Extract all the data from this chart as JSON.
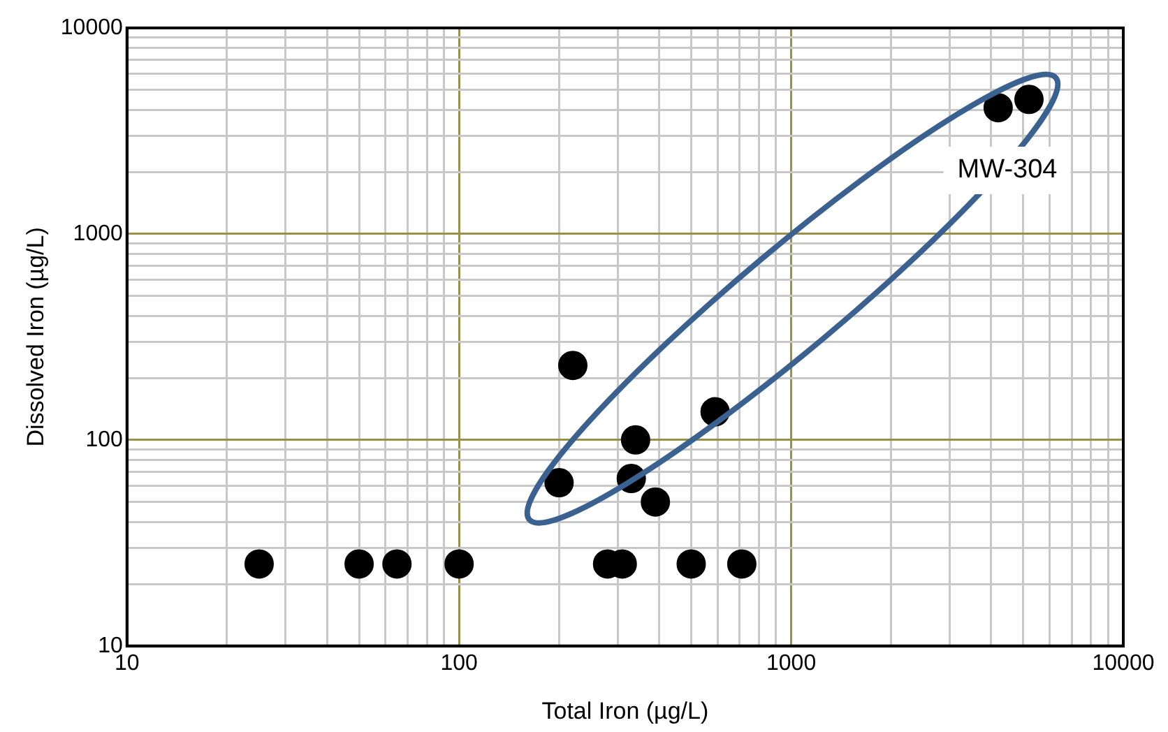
{
  "chart_data": {
    "type": "scatter",
    "xlabel": "Total Iron (µg/L)",
    "ylabel": "Dissolved Iron (µg/L)",
    "log": "xy",
    "grid": true,
    "legend": false,
    "marker": "circle",
    "xlim": [
      10,
      10000
    ],
    "ylim": [
      10,
      10000
    ],
    "xticks": [
      10,
      {
        "value": 20,
        "label": null
      },
      {
        "value": 30,
        "label": null
      },
      {
        "value": 40,
        "label": null
      },
      {
        "value": 50,
        "label": null
      },
      {
        "value": 60,
        "label": null
      },
      {
        "value": 70,
        "label": null
      },
      {
        "value": 80,
        "label": null
      },
      {
        "value": 90,
        "label": null
      },
      100,
      {
        "value": 200,
        "label": null
      },
      {
        "value": 300,
        "label": null
      },
      {
        "value": 400,
        "label": null
      },
      {
        "value": 500,
        "label": null
      },
      {
        "value": 600,
        "label": null
      },
      {
        "value": 700,
        "label": null
      },
      {
        "value": 800,
        "label": null
      },
      {
        "value": 900,
        "label": null
      },
      1000,
      {
        "value": 2000,
        "label": null
      },
      {
        "value": 3000,
        "label": null
      },
      {
        "value": 4000,
        "label": null
      },
      {
        "value": 5000,
        "label": null
      },
      {
        "value": 6000,
        "label": null
      },
      {
        "value": 7000,
        "label": null
      },
      {
        "value": 8000,
        "label": null
      },
      {
        "value": 9000,
        "label": null
      },
      10000
    ],
    "yticks": [
      10,
      {
        "value": 20,
        "label": null
      },
      {
        "value": 30,
        "label": null
      },
      {
        "value": 40,
        "label": null
      },
      {
        "value": 50,
        "label": null
      },
      {
        "value": 60,
        "label": null
      },
      {
        "value": 70,
        "label": null
      },
      {
        "value": 80,
        "label": null
      },
      {
        "value": 90,
        "label": null
      },
      100,
      {
        "value": 200,
        "label": null
      },
      {
        "value": 300,
        "label": null
      },
      {
        "value": 400,
        "label": null
      },
      {
        "value": 500,
        "label": null
      },
      {
        "value": 600,
        "label": null
      },
      {
        "value": 700,
        "label": null
      },
      {
        "value": 800,
        "label": null
      },
      {
        "value": 900,
        "label": null
      },
      1000,
      {
        "value": 2000,
        "label": null
      },
      {
        "value": 3000,
        "label": null
      },
      {
        "value": 4000,
        "label": null
      },
      {
        "value": 5000,
        "label": null
      },
      {
        "value": 6000,
        "label": null
      },
      {
        "value": 7000,
        "label": null
      },
      {
        "value": 8000,
        "label": null
      },
      {
        "value": 9000,
        "label": null
      },
      10000
    ],
    "series": [
      {
        "color": "#000000",
        "x": [
          25,
          50,
          65,
          100,
          280,
          310,
          500,
          710,
          220,
          200,
          330,
          340,
          390,
          590,
          4200,
          5200
        ],
        "values": [
          25,
          25,
          25,
          25,
          25,
          25,
          25,
          25,
          230,
          62,
          65,
          100,
          50,
          137,
          4100,
          4500
        ]
      }
    ],
    "annotations": [
      "MW-304"
    ]
  }
}
